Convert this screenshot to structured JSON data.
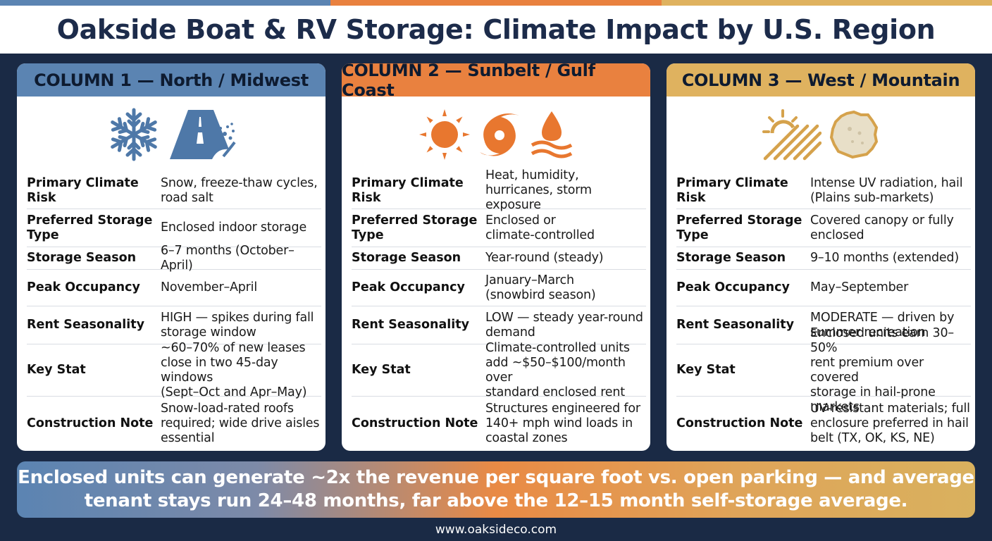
{
  "colors": {
    "background": "#1a2a45",
    "title": "#1c2b4a",
    "north": "#5b84b2",
    "sunbelt": "#e9813f",
    "west": "#dfb25f",
    "north_icon": "#4e78a8",
    "sunbelt_icon": "#e8772f",
    "west_icon": "#d5a24c"
  },
  "title": "Oakside Boat & RV Storage: Climate Impact by U.S. Region",
  "columns": [
    {
      "header": "COLUMN 1 — North / Midwest",
      "icons": [
        "snowflake-icon",
        "icy-road-icon"
      ],
      "rows": [
        {
          "label": "Primary Climate Risk",
          "value": "Snow, freeze-thaw cycles,\nroad salt"
        },
        {
          "label": "Preferred Storage Type",
          "value": "Enclosed indoor storage"
        },
        {
          "label": "Storage Season",
          "value": "6–7 months (October–April)"
        },
        {
          "label": "Peak Occupancy",
          "value": "November–April"
        },
        {
          "label": "Rent Seasonality",
          "value": "HIGH — spikes during fall\nstorage window"
        },
        {
          "label": "Key Stat",
          "value": "~60–70% of new leases\nclose in two 45-day windows\n(Sept–Oct and Apr–May)"
        },
        {
          "label": "Construction Note",
          "value": "Snow-load-rated roofs\nrequired; wide drive aisles\nessential"
        }
      ]
    },
    {
      "header": "COLUMN 2 — Sunbelt / Gulf Coast",
      "icons": [
        "sun-icon",
        "hurricane-icon",
        "humidity-drop-icon"
      ],
      "rows": [
        {
          "label": "Primary Climate Risk",
          "value": "Heat, humidity,\nhurricanes, storm exposure"
        },
        {
          "label": "Preferred Storage Type",
          "value": "Enclosed or\nclimate-controlled"
        },
        {
          "label": "Storage Season",
          "value": "Year-round (steady)"
        },
        {
          "label": "Peak Occupancy",
          "value": "January–March\n(snowbird season)"
        },
        {
          "label": "Rent Seasonality",
          "value": "LOW — steady year-round\ndemand"
        },
        {
          "label": "Key Stat",
          "value": "Climate-controlled units\nadd ~$50–$100/month over\nstandard enclosed rent"
        },
        {
          "label": "Construction Note",
          "value": "Structures engineered for\n140+ mph wind loads in\ncoastal zones"
        }
      ]
    },
    {
      "header": "COLUMN 3 — West / Mountain",
      "icons": [
        "uv-sun-rays-icon",
        "hailstone-icon"
      ],
      "rows": [
        {
          "label": "Primary Climate Risk",
          "value": "Intense UV radiation, hail\n(Plains sub-markets)"
        },
        {
          "label": "Preferred Storage Type",
          "value": "Covered canopy or fully\nenclosed"
        },
        {
          "label": "Storage Season",
          "value": "9–10 months (extended)"
        },
        {
          "label": "Peak Occupancy",
          "value": "May–September"
        },
        {
          "label": "Rent Seasonality",
          "value": "MODERATE — driven by\nsummer recreation"
        },
        {
          "label": "Key Stat",
          "value": "Enclosed units earn 30–50%\nrent premium over covered\nstorage in hail-prone markets"
        },
        {
          "label": "Construction Note",
          "value": "UV-resistant materials; full\nenclosure preferred in hail\nbelt (TX, OK, KS, NE)"
        }
      ]
    }
  ],
  "banner": "Enclosed units can generate ~2x the revenue per square foot vs. open parking — and average\ntenant stays run 24–48 months, far above the 12–15 month self-storage average.",
  "footer": "www.oaksideco.com"
}
